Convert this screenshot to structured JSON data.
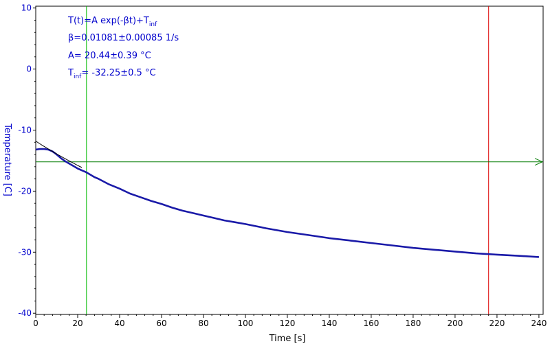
{
  "chart_data": {
    "type": "line",
    "title": "",
    "xlabel": "Time [s]",
    "ylabel": "Temperature [C]",
    "xlim": [
      0,
      242
    ],
    "ylim": [
      -40.2,
      10.3
    ],
    "x_ticks": [
      0,
      20,
      40,
      60,
      80,
      100,
      120,
      140,
      160,
      180,
      200,
      220,
      240
    ],
    "y_ticks": [
      10,
      0,
      -10,
      -20,
      -30,
      -40
    ],
    "grid": false,
    "fit_annotation": {
      "formula_main": "T(t)=A exp(-βt)+T",
      "formula_sub": "inf",
      "beta": "β=0.01081±0.00085 1/s",
      "A": "A= 20.44±0.39 °C",
      "tinf_prefix": "T",
      "tinf_sub": "inf",
      "tinf_value": "= -32.25±0.5 °C"
    },
    "fit_model": {
      "A": 20.44,
      "beta": 0.01081,
      "T_inf": -32.25,
      "x_start": 0,
      "x_end": 22
    },
    "data_series": {
      "x": [
        0,
        2,
        4,
        6,
        8,
        10,
        12,
        14,
        16,
        18,
        20,
        22,
        24,
        26,
        28,
        30,
        35,
        40,
        45,
        50,
        55,
        60,
        65,
        70,
        75,
        80,
        85,
        90,
        95,
        100,
        110,
        120,
        130,
        140,
        150,
        160,
        170,
        180,
        190,
        200,
        210,
        220,
        230,
        240
      ],
      "y": [
        -13.2,
        -13.1,
        -13.1,
        -13.2,
        -13.5,
        -14.0,
        -14.6,
        -15.1,
        -15.5,
        -15.9,
        -16.3,
        -16.6,
        -16.9,
        -17.3,
        -17.7,
        -18.0,
        -18.9,
        -19.6,
        -20.4,
        -21.0,
        -21.6,
        -22.1,
        -22.7,
        -23.2,
        -23.6,
        -24.0,
        -24.4,
        -24.8,
        -25.1,
        -25.4,
        -26.1,
        -26.7,
        -27.2,
        -27.7,
        -28.1,
        -28.5,
        -28.9,
        -29.3,
        -29.6,
        -29.9,
        -30.2,
        -30.4,
        -30.6,
        -30.8
      ]
    },
    "cursors": {
      "vertical_green_x": 24.2,
      "vertical_red_x": 216,
      "horizontal_green_y": -15.2
    },
    "colors": {
      "data": "#1a1aa8",
      "fit": "#000000",
      "text": "#0000cc",
      "green_cursor": "#00bb00",
      "horizontal_cursor": "#007a00",
      "red_cursor": "#dd0000",
      "axis": "#000000"
    }
  }
}
